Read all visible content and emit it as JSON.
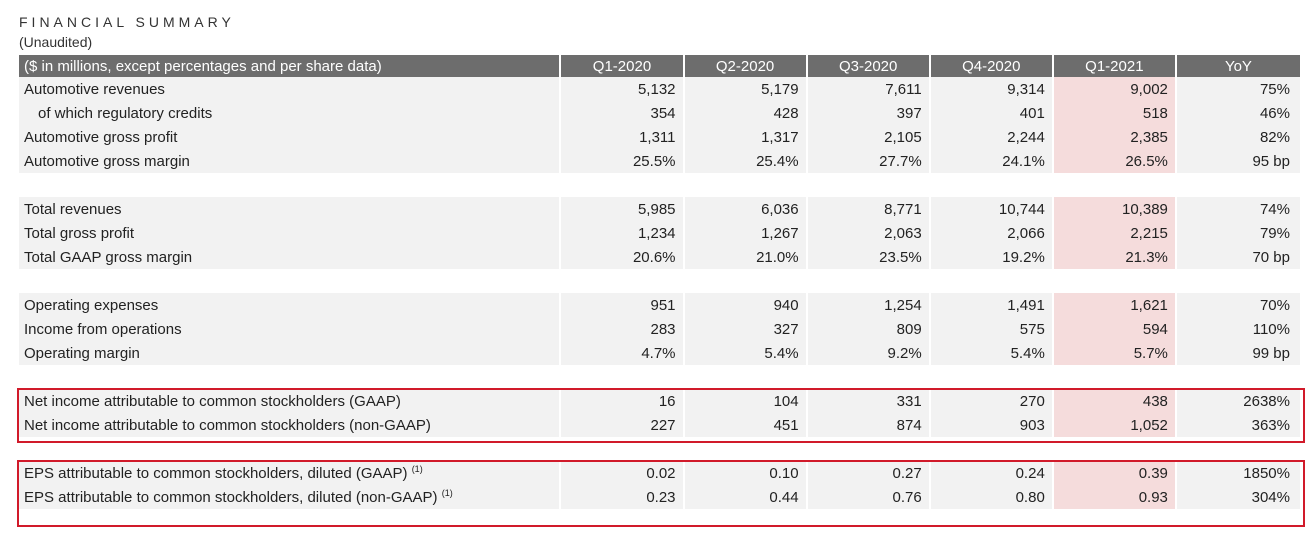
{
  "header": {
    "title": "FINANCIAL SUMMARY",
    "subtitle": "(Unaudited)"
  },
  "table": {
    "columns": [
      "($ in millions, except percentages and per share data)",
      "Q1-2020",
      "Q2-2020",
      "Q3-2020",
      "Q4-2020",
      "Q1-2021",
      "YoY"
    ],
    "highlight_color": "#f5dcdc",
    "groups": [
      [
        {
          "label": "Automotive revenues",
          "values": [
            "5,132",
            "5,179",
            "7,611",
            "9,314",
            "9,002",
            "75%"
          ]
        },
        {
          "label": "of which regulatory credits",
          "values": [
            "354",
            "428",
            "397",
            "401",
            "518",
            "46%"
          ]
        },
        {
          "label": "Automotive gross profit",
          "values": [
            "1,311",
            "1,317",
            "2,105",
            "2,244",
            "2,385",
            "82%"
          ]
        },
        {
          "label": "Automotive gross margin",
          "values": [
            "25.5%",
            "25.4%",
            "27.7%",
            "24.1%",
            "26.5%",
            "95 bp"
          ]
        }
      ],
      [
        {
          "label": "Total revenues",
          "values": [
            "5,985",
            "6,036",
            "8,771",
            "10,744",
            "10,389",
            "74%"
          ]
        },
        {
          "label": "Total gross profit",
          "values": [
            "1,234",
            "1,267",
            "2,063",
            "2,066",
            "2,215",
            "79%"
          ]
        },
        {
          "label": "Total GAAP gross margin",
          "values": [
            "20.6%",
            "21.0%",
            "23.5%",
            "19.2%",
            "21.3%",
            "70 bp"
          ]
        }
      ],
      [
        {
          "label": "Operating expenses",
          "values": [
            "951",
            "940",
            "1,254",
            "1,491",
            "1,621",
            "70%"
          ]
        },
        {
          "label": "Income from operations",
          "values": [
            "283",
            "327",
            "809",
            "575",
            "594",
            "110%"
          ]
        },
        {
          "label": "Operating margin",
          "values": [
            "4.7%",
            "5.4%",
            "9.2%",
            "5.4%",
            "5.7%",
            "99 bp"
          ]
        }
      ],
      [
        {
          "label": "Net income attributable to common stockholders (GAAP)",
          "values": [
            "16",
            "104",
            "331",
            "270",
            "438",
            "2638%"
          ]
        },
        {
          "label": "Net income attributable to common stockholders (non-GAAP)",
          "values": [
            "227",
            "451",
            "874",
            "903",
            "1,052",
            "363%"
          ]
        }
      ],
      [
        {
          "label": "EPS attributable to common stockholders, diluted (GAAP)",
          "footnote": "(1)",
          "values": [
            "0.02",
            "0.10",
            "0.27",
            "0.24",
            "0.39",
            "1850%"
          ]
        },
        {
          "label": "EPS attributable to common stockholders, diluted (non-GAAP)",
          "footnote": "(1)",
          "values": [
            "0.23",
            "0.44",
            "0.76",
            "0.80",
            "0.93",
            "304%"
          ]
        }
      ]
    ]
  },
  "annotations": {
    "box_color": "#d11a2a"
  }
}
